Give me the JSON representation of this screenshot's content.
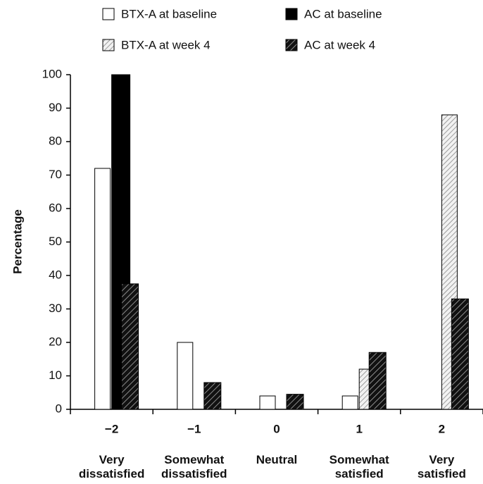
{
  "chart_data": {
    "type": "bar",
    "y_label": "Percentage",
    "categories": [
      "−2",
      "−1",
      "0",
      "1",
      "2"
    ],
    "category_descriptions": [
      "Very dissatisfied",
      "Somewhat dissatisfied",
      "Neutral",
      "Somewhat satisfied",
      "Very satisfied"
    ],
    "series": [
      {
        "name": "BTX-A at baseline",
        "color": "#ffffff",
        "values": [
          72,
          20,
          4,
          4,
          0
        ]
      },
      {
        "name": "AC at baseline",
        "color": "#000000",
        "values": [
          100,
          0,
          0,
          0,
          0
        ]
      },
      {
        "name": "BTX-A at week 4",
        "color": "#d0d0d0",
        "values": [
          0,
          0,
          0,
          12,
          88
        ]
      },
      {
        "name": "AC at week 4",
        "color": "#333333",
        "values": [
          37.5,
          8,
          4.5,
          17,
          33
        ]
      }
    ],
    "ylim": [
      0,
      100
    ],
    "yticks": [
      0,
      10,
      20,
      30,
      40,
      50,
      60,
      70,
      80,
      90,
      100
    ],
    "grid": false
  }
}
